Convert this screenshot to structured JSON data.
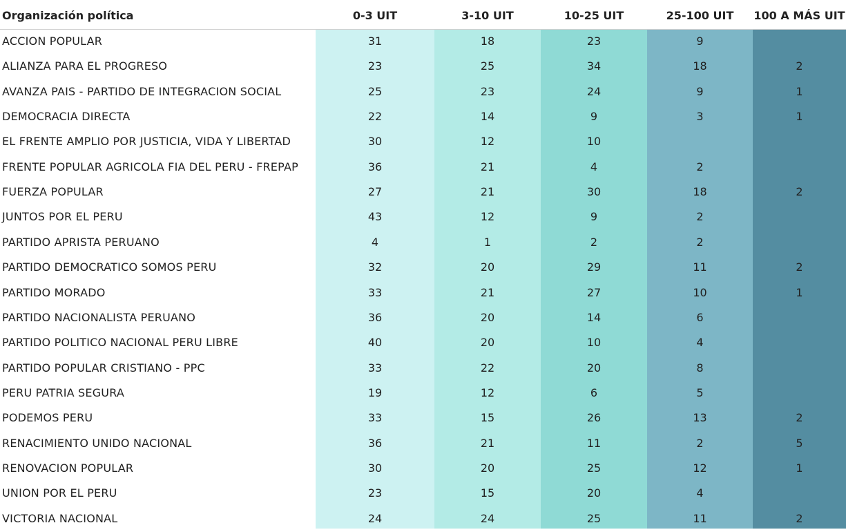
{
  "chart_data": {
    "type": "table",
    "columns": [
      "Organización política",
      "0-3 UIT",
      "3-10 UIT",
      "10-25 UIT",
      "25-100 UIT",
      "100 A MÁS UIT"
    ],
    "column_colors": [
      "#ffffff",
      "#cdf2f2",
      "#b3ebe6",
      "#8fdad5",
      "#7db6c6",
      "#548da1"
    ],
    "rows": [
      {
        "name": "ACCION POPULAR",
        "values": [
          "31",
          "18",
          "23",
          "9",
          ""
        ]
      },
      {
        "name": "ALIANZA PARA EL PROGRESO",
        "values": [
          "23",
          "25",
          "34",
          "18",
          "2"
        ]
      },
      {
        "name": "AVANZA PAIS - PARTIDO DE INTEGRACION SOCIAL",
        "values": [
          "25",
          "23",
          "24",
          "9",
          "1"
        ]
      },
      {
        "name": "DEMOCRACIA DIRECTA",
        "values": [
          "22",
          "14",
          "9",
          "3",
          "1"
        ]
      },
      {
        "name": "EL FRENTE AMPLIO POR JUSTICIA, VIDA Y LIBERTAD",
        "values": [
          "30",
          "12",
          "10",
          "",
          ""
        ]
      },
      {
        "name": "FRENTE POPULAR AGRICOLA FIA DEL PERU - FREPAP",
        "values": [
          "36",
          "21",
          "4",
          "2",
          ""
        ]
      },
      {
        "name": "FUERZA POPULAR",
        "values": [
          "27",
          "21",
          "30",
          "18",
          "2"
        ]
      },
      {
        "name": "JUNTOS POR EL PERU",
        "values": [
          "43",
          "12",
          "9",
          "2",
          ""
        ]
      },
      {
        "name": "PARTIDO APRISTA PERUANO",
        "values": [
          "4",
          "1",
          "2",
          "2",
          ""
        ]
      },
      {
        "name": "PARTIDO DEMOCRATICO SOMOS PERU",
        "values": [
          "32",
          "20",
          "29",
          "11",
          "2"
        ]
      },
      {
        "name": "PARTIDO MORADO",
        "values": [
          "33",
          "21",
          "27",
          "10",
          "1"
        ]
      },
      {
        "name": "PARTIDO NACIONALISTA PERUANO",
        "values": [
          "36",
          "20",
          "14",
          "6",
          ""
        ]
      },
      {
        "name": "PARTIDO POLITICO NACIONAL PERU LIBRE",
        "values": [
          "40",
          "20",
          "10",
          "4",
          ""
        ]
      },
      {
        "name": "PARTIDO POPULAR CRISTIANO - PPC",
        "values": [
          "33",
          "22",
          "20",
          "8",
          ""
        ]
      },
      {
        "name": "PERU PATRIA SEGURA",
        "values": [
          "19",
          "12",
          "6",
          "5",
          ""
        ]
      },
      {
        "name": "PODEMOS PERU",
        "values": [
          "33",
          "15",
          "26",
          "13",
          "2"
        ]
      },
      {
        "name": "RENACIMIENTO UNIDO NACIONAL",
        "values": [
          "36",
          "21",
          "11",
          "2",
          "5"
        ]
      },
      {
        "name": "RENOVACION POPULAR",
        "values": [
          "30",
          "20",
          "25",
          "12",
          "1"
        ]
      },
      {
        "name": "UNION POR EL PERU",
        "values": [
          "23",
          "15",
          "20",
          "4",
          ""
        ]
      },
      {
        "name": "VICTORIA NACIONAL",
        "values": [
          "24",
          "24",
          "25",
          "11",
          "2"
        ]
      }
    ]
  }
}
